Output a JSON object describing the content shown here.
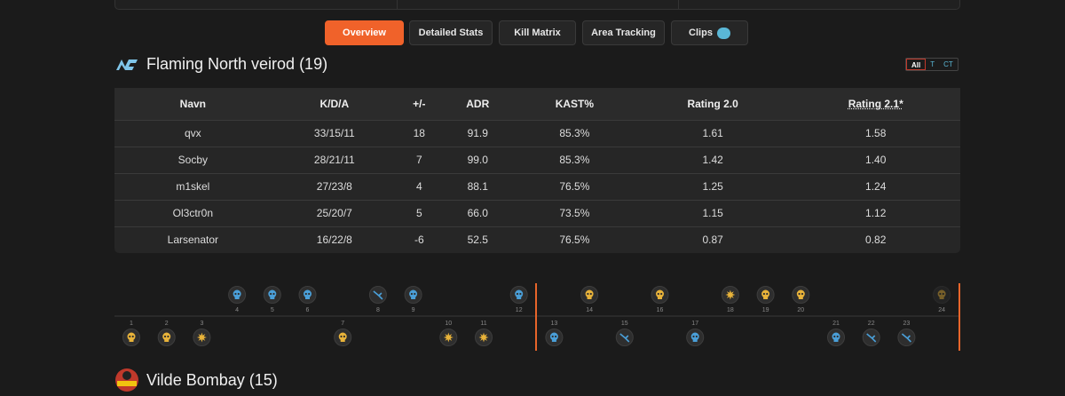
{
  "tabs": [
    "Overview",
    "Detailed Stats",
    "Kill Matrix",
    "Area Tracking",
    "Clips"
  ],
  "active_tab": 0,
  "team1": {
    "name": "Flaming North veirod (19)"
  },
  "side_filter": [
    "All",
    "T",
    "CT"
  ],
  "table": {
    "headers": [
      "Navn",
      "K/D/A",
      "+/-",
      "ADR",
      "KAST%",
      "Rating 2.0",
      "Rating 2.1*"
    ],
    "rows": [
      [
        "qvx",
        "33/15/11",
        "18",
        "91.9",
        "85.3%",
        "1.61",
        "1.58"
      ],
      [
        "Socby",
        "28/21/11",
        "7",
        "99.0",
        "85.3%",
        "1.42",
        "1.40"
      ],
      [
        "m1skel",
        "27/23/8",
        "4",
        "88.1",
        "76.5%",
        "1.25",
        "1.24"
      ],
      [
        "Ol3ctr0n",
        "25/20/7",
        "5",
        "66.0",
        "73.5%",
        "1.15",
        "1.12"
      ],
      [
        "Larsenator",
        "16/22/8",
        "-6",
        "52.5",
        "76.5%",
        "0.87",
        "0.82"
      ]
    ]
  },
  "rounds": [
    {
      "number": "1",
      "winner": "bottom",
      "icon": "skull",
      "side": "t"
    },
    {
      "number": "2",
      "winner": "bottom",
      "icon": "skull",
      "side": "t"
    },
    {
      "number": "3",
      "winner": "bottom",
      "icon": "bomb",
      "side": "t"
    },
    {
      "number": "4",
      "winner": "top",
      "icon": "skull",
      "side": "ct"
    },
    {
      "number": "5",
      "winner": "top",
      "icon": "skull",
      "side": "ct"
    },
    {
      "number": "6",
      "winner": "top",
      "icon": "skull",
      "side": "ct"
    },
    {
      "number": "7",
      "winner": "bottom",
      "icon": "skull",
      "side": "t"
    },
    {
      "number": "8",
      "winner": "top",
      "icon": "defuse",
      "side": "ct"
    },
    {
      "number": "9",
      "winner": "top",
      "icon": "skull",
      "side": "ct"
    },
    {
      "number": "10",
      "winner": "bottom",
      "icon": "bomb",
      "side": "t"
    },
    {
      "number": "11",
      "winner": "bottom",
      "icon": "bomb",
      "side": "t"
    },
    {
      "number": "12",
      "winner": "top",
      "icon": "skull",
      "side": "ct"
    },
    {
      "number": "13",
      "winner": "bottom",
      "icon": "skull",
      "side": "ct"
    },
    {
      "number": "14",
      "winner": "top",
      "icon": "skull",
      "side": "t"
    },
    {
      "number": "15",
      "winner": "bottom",
      "icon": "defuse",
      "side": "ct"
    },
    {
      "number": "16",
      "winner": "top",
      "icon": "skull",
      "side": "t"
    },
    {
      "number": "17",
      "winner": "bottom",
      "icon": "skull",
      "side": "ct"
    },
    {
      "number": "18",
      "winner": "top",
      "icon": "bomb",
      "side": "t"
    },
    {
      "number": "19",
      "winner": "top",
      "icon": "skull",
      "side": "t"
    },
    {
      "number": "20",
      "winner": "top",
      "icon": "skull",
      "side": "t"
    },
    {
      "number": "21",
      "winner": "bottom",
      "icon": "skull",
      "side": "ct"
    },
    {
      "number": "22",
      "winner": "bottom",
      "icon": "defuse",
      "side": "ct"
    },
    {
      "number": "23",
      "winner": "bottom",
      "icon": "defuse",
      "side": "ct"
    },
    {
      "number": "24",
      "winner": "top",
      "icon": "skull",
      "side": "t",
      "faded": true
    }
  ],
  "team2": {
    "name": "Vilde Bombay (15)"
  }
}
